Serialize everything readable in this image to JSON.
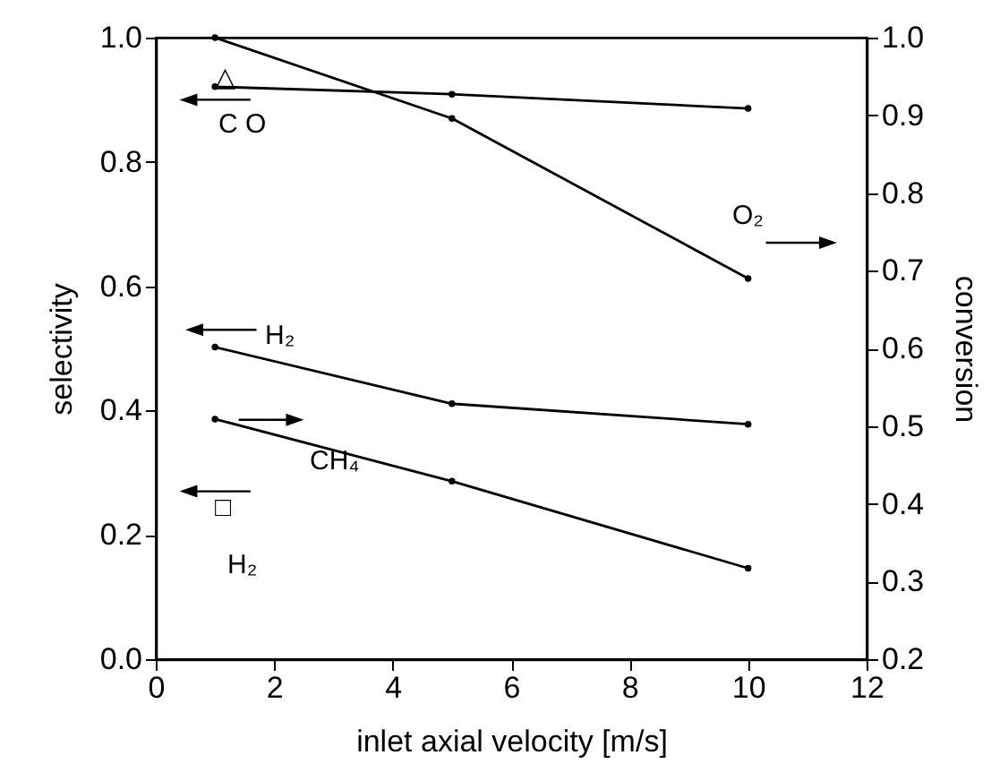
{
  "chart_data": {
    "type": "line",
    "xlabel": "inlet axial velocity [m/s]",
    "ylabel": "selectivity",
    "y2label": "conversion",
    "x": [
      1,
      5,
      10
    ],
    "series": [
      {
        "color": "#000000",
        "values": [
          0.921,
          0.909,
          0.886
        ]
      },
      {
        "color": "#000000",
        "values": [
          1.0,
          0.896,
          0.69
        ],
        "axis": "y2"
      },
      {
        "color": "#000000",
        "values": [
          0.502,
          0.411,
          0.378
        ]
      },
      {
        "color": "#000000",
        "values": [
          0.509,
          0.429,
          0.317
        ],
        "axis": "y2"
      }
    ],
    "xlim": [
      0,
      12
    ],
    "xticks": [
      0,
      2,
      4,
      6,
      8,
      10,
      12
    ],
    "ylim": [
      0,
      1
    ],
    "yticks": [
      {
        "value": 0,
        "label": "0.0"
      },
      0.2,
      0.4,
      0.6,
      0.8,
      {
        "value": 1,
        "label": "1.0"
      }
    ],
    "y2lim": [
      0.2,
      1
    ],
    "y2ticks": [
      0.2,
      0.3,
      0.4,
      0.5,
      0.6,
      0.7,
      0.8,
      0.9,
      {
        "value": 1,
        "label": "1.0"
      }
    ],
    "marker": "circle",
    "line_style": "solid",
    "grid": false,
    "annotations": [
      "C O",
      "△",
      "O₂",
      "H₂",
      "CH₄",
      "□",
      "H₂"
    ]
  }
}
